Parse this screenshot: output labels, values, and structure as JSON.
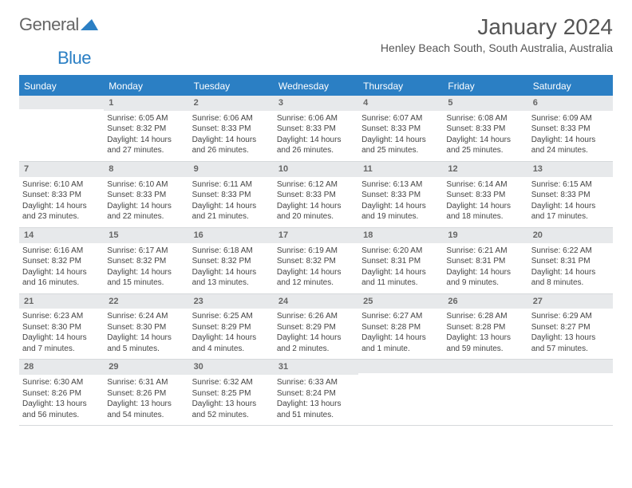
{
  "brand": {
    "name_part1": "General",
    "name_part2": "Blue"
  },
  "title": "January 2024",
  "location": "Henley Beach South, South Australia, Australia",
  "colors": {
    "accent": "#2b7fc4",
    "daynum_bg": "#e7e9eb",
    "border": "#d6d9dc",
    "text": "#444444",
    "background": "#ffffff"
  },
  "typography": {
    "title_fontsize": 28,
    "location_fontsize": 14,
    "dow_fontsize": 12,
    "cell_fontsize": 10
  },
  "days_of_week": [
    "Sunday",
    "Monday",
    "Tuesday",
    "Wednesday",
    "Thursday",
    "Friday",
    "Saturday"
  ],
  "weeks": [
    [
      null,
      {
        "n": "1",
        "sunrise": "Sunrise: 6:05 AM",
        "sunset": "Sunset: 8:32 PM",
        "daylight": "Daylight: 14 hours and 27 minutes."
      },
      {
        "n": "2",
        "sunrise": "Sunrise: 6:06 AM",
        "sunset": "Sunset: 8:33 PM",
        "daylight": "Daylight: 14 hours and 26 minutes."
      },
      {
        "n": "3",
        "sunrise": "Sunrise: 6:06 AM",
        "sunset": "Sunset: 8:33 PM",
        "daylight": "Daylight: 14 hours and 26 minutes."
      },
      {
        "n": "4",
        "sunrise": "Sunrise: 6:07 AM",
        "sunset": "Sunset: 8:33 PM",
        "daylight": "Daylight: 14 hours and 25 minutes."
      },
      {
        "n": "5",
        "sunrise": "Sunrise: 6:08 AM",
        "sunset": "Sunset: 8:33 PM",
        "daylight": "Daylight: 14 hours and 25 minutes."
      },
      {
        "n": "6",
        "sunrise": "Sunrise: 6:09 AM",
        "sunset": "Sunset: 8:33 PM",
        "daylight": "Daylight: 14 hours and 24 minutes."
      }
    ],
    [
      {
        "n": "7",
        "sunrise": "Sunrise: 6:10 AM",
        "sunset": "Sunset: 8:33 PM",
        "daylight": "Daylight: 14 hours and 23 minutes."
      },
      {
        "n": "8",
        "sunrise": "Sunrise: 6:10 AM",
        "sunset": "Sunset: 8:33 PM",
        "daylight": "Daylight: 14 hours and 22 minutes."
      },
      {
        "n": "9",
        "sunrise": "Sunrise: 6:11 AM",
        "sunset": "Sunset: 8:33 PM",
        "daylight": "Daylight: 14 hours and 21 minutes."
      },
      {
        "n": "10",
        "sunrise": "Sunrise: 6:12 AM",
        "sunset": "Sunset: 8:33 PM",
        "daylight": "Daylight: 14 hours and 20 minutes."
      },
      {
        "n": "11",
        "sunrise": "Sunrise: 6:13 AM",
        "sunset": "Sunset: 8:33 PM",
        "daylight": "Daylight: 14 hours and 19 minutes."
      },
      {
        "n": "12",
        "sunrise": "Sunrise: 6:14 AM",
        "sunset": "Sunset: 8:33 PM",
        "daylight": "Daylight: 14 hours and 18 minutes."
      },
      {
        "n": "13",
        "sunrise": "Sunrise: 6:15 AM",
        "sunset": "Sunset: 8:33 PM",
        "daylight": "Daylight: 14 hours and 17 minutes."
      }
    ],
    [
      {
        "n": "14",
        "sunrise": "Sunrise: 6:16 AM",
        "sunset": "Sunset: 8:32 PM",
        "daylight": "Daylight: 14 hours and 16 minutes."
      },
      {
        "n": "15",
        "sunrise": "Sunrise: 6:17 AM",
        "sunset": "Sunset: 8:32 PM",
        "daylight": "Daylight: 14 hours and 15 minutes."
      },
      {
        "n": "16",
        "sunrise": "Sunrise: 6:18 AM",
        "sunset": "Sunset: 8:32 PM",
        "daylight": "Daylight: 14 hours and 13 minutes."
      },
      {
        "n": "17",
        "sunrise": "Sunrise: 6:19 AM",
        "sunset": "Sunset: 8:32 PM",
        "daylight": "Daylight: 14 hours and 12 minutes."
      },
      {
        "n": "18",
        "sunrise": "Sunrise: 6:20 AM",
        "sunset": "Sunset: 8:31 PM",
        "daylight": "Daylight: 14 hours and 11 minutes."
      },
      {
        "n": "19",
        "sunrise": "Sunrise: 6:21 AM",
        "sunset": "Sunset: 8:31 PM",
        "daylight": "Daylight: 14 hours and 9 minutes."
      },
      {
        "n": "20",
        "sunrise": "Sunrise: 6:22 AM",
        "sunset": "Sunset: 8:31 PM",
        "daylight": "Daylight: 14 hours and 8 minutes."
      }
    ],
    [
      {
        "n": "21",
        "sunrise": "Sunrise: 6:23 AM",
        "sunset": "Sunset: 8:30 PM",
        "daylight": "Daylight: 14 hours and 7 minutes."
      },
      {
        "n": "22",
        "sunrise": "Sunrise: 6:24 AM",
        "sunset": "Sunset: 8:30 PM",
        "daylight": "Daylight: 14 hours and 5 minutes."
      },
      {
        "n": "23",
        "sunrise": "Sunrise: 6:25 AM",
        "sunset": "Sunset: 8:29 PM",
        "daylight": "Daylight: 14 hours and 4 minutes."
      },
      {
        "n": "24",
        "sunrise": "Sunrise: 6:26 AM",
        "sunset": "Sunset: 8:29 PM",
        "daylight": "Daylight: 14 hours and 2 minutes."
      },
      {
        "n": "25",
        "sunrise": "Sunrise: 6:27 AM",
        "sunset": "Sunset: 8:28 PM",
        "daylight": "Daylight: 14 hours and 1 minute."
      },
      {
        "n": "26",
        "sunrise": "Sunrise: 6:28 AM",
        "sunset": "Sunset: 8:28 PM",
        "daylight": "Daylight: 13 hours and 59 minutes."
      },
      {
        "n": "27",
        "sunrise": "Sunrise: 6:29 AM",
        "sunset": "Sunset: 8:27 PM",
        "daylight": "Daylight: 13 hours and 57 minutes."
      }
    ],
    [
      {
        "n": "28",
        "sunrise": "Sunrise: 6:30 AM",
        "sunset": "Sunset: 8:26 PM",
        "daylight": "Daylight: 13 hours and 56 minutes."
      },
      {
        "n": "29",
        "sunrise": "Sunrise: 6:31 AM",
        "sunset": "Sunset: 8:26 PM",
        "daylight": "Daylight: 13 hours and 54 minutes."
      },
      {
        "n": "30",
        "sunrise": "Sunrise: 6:32 AM",
        "sunset": "Sunset: 8:25 PM",
        "daylight": "Daylight: 13 hours and 52 minutes."
      },
      {
        "n": "31",
        "sunrise": "Sunrise: 6:33 AM",
        "sunset": "Sunset: 8:24 PM",
        "daylight": "Daylight: 13 hours and 51 minutes."
      },
      null,
      null,
      null
    ]
  ]
}
